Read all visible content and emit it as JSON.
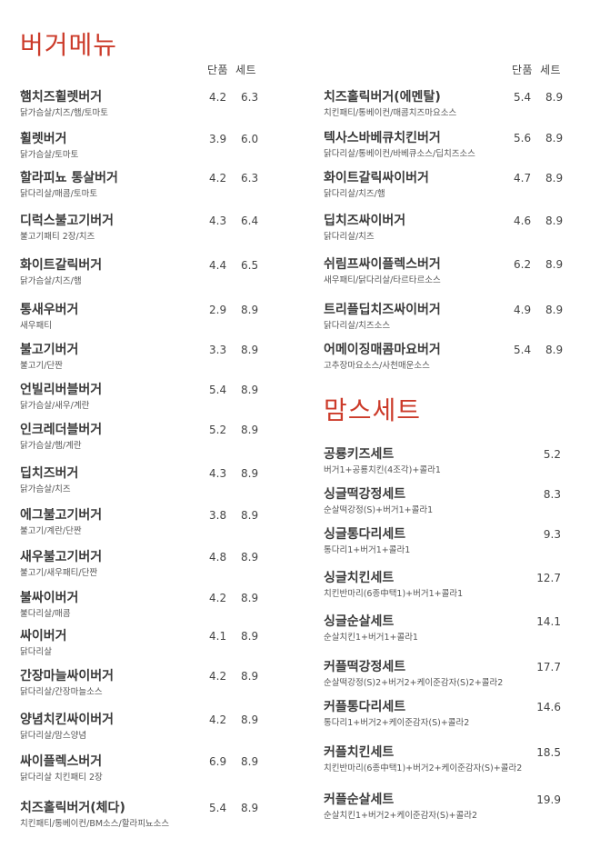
{
  "burger": {
    "title": "버거메뉴",
    "col_single": "단품",
    "col_set": "세트",
    "items": [
      {
        "name": "햄치즈휠렛버거",
        "desc": "닭가슴살/치즈/햄/토마토",
        "single": "4.2",
        "set": "6.3"
      },
      {
        "name": "휠렛버거",
        "desc": "닭가슴살/토마토",
        "single": "3.9",
        "set": "6.0"
      },
      {
        "name": "할라피뇨 통살버거",
        "desc": "닭다리살/매콤/토마토",
        "single": "4.2",
        "set": "6.3"
      },
      {
        "name": "디럭스불고기버거",
        "desc": "불고기패티 2장/치즈",
        "single": "4.3",
        "set": "6.4"
      },
      {
        "name": "화이트갈릭버거",
        "desc": "닭가슴살/치즈/햄",
        "single": "4.4",
        "set": "6.5"
      },
      {
        "name": "통새우버거",
        "desc": "새우패티",
        "single": "2.9",
        "set": "8.9"
      },
      {
        "name": "불고기버거",
        "desc": "불고기/단짠",
        "single": "3.3",
        "set": "8.9"
      },
      {
        "name": "언빌리버블버거",
        "desc": "닭가슴살/새우/계란",
        "single": "5.4",
        "set": "8.9"
      },
      {
        "name": "인크레더블버거",
        "desc": "닭가슴살/햄/계란",
        "single": "5.2",
        "set": "8.9"
      },
      {
        "name": "딥치즈버거",
        "desc": "닭가슴살/치즈",
        "single": "4.3",
        "set": "8.9"
      },
      {
        "name": "에그불고기버거",
        "desc": "불고기/계란/단짠",
        "single": "3.8",
        "set": "8.9"
      },
      {
        "name": "새우불고기버거",
        "desc": "불고기/새우패티/단짠",
        "single": "4.8",
        "set": "8.9"
      },
      {
        "name": "불싸이버거",
        "desc": "불다리살/매콤",
        "single": "4.2",
        "set": "8.9"
      },
      {
        "name": "싸이버거",
        "desc": "닭다리살",
        "single": "4.1",
        "set": "8.9"
      },
      {
        "name": "간장마늘싸이버거",
        "desc": "닭다리살/간장마늘소스",
        "single": "4.2",
        "set": "8.9"
      },
      {
        "name": "양념치킨싸이버거",
        "desc": "닭다리살/맘스양념",
        "single": "4.2",
        "set": "8.9"
      },
      {
        "name": "싸이플렉스버거",
        "desc": "닭다리살 치킨패티 2장",
        "single": "6.9",
        "set": "8.9"
      },
      {
        "name": "치즈홀릭버거(체다)",
        "desc": "치킨패티/통베이컨/BM소스/할라피뇨소스",
        "single": "5.4",
        "set": "8.9"
      },
      {
        "name": "치즈홀릭버거(에멘탈)",
        "desc": "치킨패티/통베이컨/매콤치즈마요소스",
        "single": "5.4",
        "set": "8.9"
      },
      {
        "name": "텍사스바베큐치킨버거",
        "desc": "닭다리살/통베이컨/바베큐소스/딥치즈소스",
        "single": "5.6",
        "set": "8.9"
      },
      {
        "name": "화이트갈릭싸이버거",
        "desc": "닭다리살/치즈/햄",
        "single": "4.7",
        "set": "8.9"
      },
      {
        "name": "딥치즈싸이버거",
        "desc": "닭다리살/치즈",
        "single": "4.6",
        "set": "8.9"
      },
      {
        "name": "쉬림프싸이플렉스버거",
        "desc": "새우패티/닭다리살/타르타르소스",
        "single": "6.2",
        "set": "8.9"
      },
      {
        "name": "트리플딥치즈싸이버거",
        "desc": "닭다리살/치즈소스",
        "single": "4.9",
        "set": "8.9"
      },
      {
        "name": "어메이징매콤마요버거",
        "desc": "고추장마요소스/사천매운소스",
        "single": "5.4",
        "set": "8.9"
      }
    ]
  },
  "moms_set": {
    "title": "맘스세트",
    "items": [
      {
        "name": "공룡키즈세트",
        "desc": "버거1+공룡치킨(4조각)+콜라1",
        "price": "5.2"
      },
      {
        "name": "싱글떡강정세트",
        "desc": "순살떡강정(S)+버거1+콜라1",
        "price": "8.3"
      },
      {
        "name": "싱글통다리세트",
        "desc": "통다리1+버거1+콜라1",
        "price": "9.3"
      },
      {
        "name": "싱글치킨세트",
        "desc": "치킨반마리(6종中택1)+버거1+콜라1",
        "price": "12.7"
      },
      {
        "name": "싱글순살세트",
        "desc": "순살치킨1+버거1+콜라1",
        "price": "14.1"
      },
      {
        "name": "커플떡강정세트",
        "desc": "순살떡강정(S)2+버거2+케이준감자(S)2+콜라2",
        "price": "17.7"
      },
      {
        "name": "커플통다리세트",
        "desc": "통다리1+버거2+케이준감자(S)+콜라2",
        "price": "14.6"
      },
      {
        "name": "커플치킨세트",
        "desc": "치킨반마리(6종中택1)+버거2+케이준감자(S)+콜라2",
        "price": "18.5"
      },
      {
        "name": "커플순살세트",
        "desc": "순살치킨1+버거2+케이준감자(S)+콜라2",
        "price": "19.9"
      }
    ]
  }
}
